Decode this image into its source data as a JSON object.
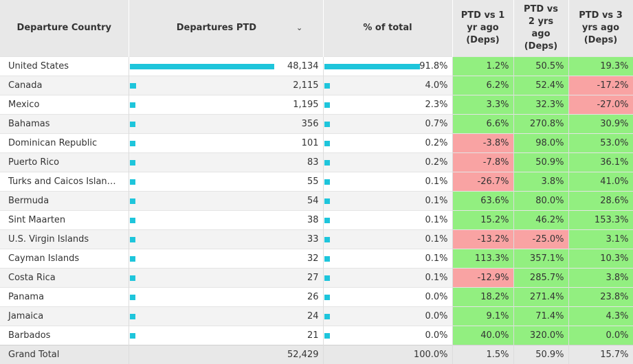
{
  "headers": {
    "country": "Departure Country",
    "departures": "Departures PTD",
    "pct": "% of total",
    "d1": [
      "PTD vs 1",
      "yr ago",
      "(Deps)"
    ],
    "d2": [
      "PTD vs",
      "2 yrs",
      "ago",
      "(Deps)"
    ],
    "d3": [
      "PTD vs 3",
      "yrs ago",
      "(Deps)"
    ]
  },
  "rows": [
    {
      "country": "United States",
      "departures": "48,134",
      "dep_value": 48134,
      "pct": "91.8%",
      "pct_value": 91.8,
      "d1": "1.2%",
      "d2": "50.5%",
      "d3": "19.3%"
    },
    {
      "country": "Canada",
      "departures": "2,115",
      "dep_value": 2115,
      "pct": "4.0%",
      "pct_value": 4.0,
      "d1": "6.2%",
      "d2": "52.4%",
      "d3": "-17.2%"
    },
    {
      "country": "Mexico",
      "departures": "1,195",
      "dep_value": 1195,
      "pct": "2.3%",
      "pct_value": 2.3,
      "d1": "3.3%",
      "d2": "32.3%",
      "d3": "-27.0%"
    },
    {
      "country": "Bahamas",
      "departures": "356",
      "dep_value": 356,
      "pct": "0.7%",
      "pct_value": 0.7,
      "d1": "6.6%",
      "d2": "270.8%",
      "d3": "30.9%"
    },
    {
      "country": "Dominican Republic",
      "departures": "101",
      "dep_value": 101,
      "pct": "0.2%",
      "pct_value": 0.2,
      "d1": "-3.8%",
      "d2": "98.0%",
      "d3": "53.0%"
    },
    {
      "country": "Puerto Rico",
      "departures": "83",
      "dep_value": 83,
      "pct": "0.2%",
      "pct_value": 0.2,
      "d1": "-7.8%",
      "d2": "50.9%",
      "d3": "36.1%"
    },
    {
      "country": "Turks and Caicos Islan…",
      "departures": "55",
      "dep_value": 55,
      "pct": "0.1%",
      "pct_value": 0.1,
      "d1": "-26.7%",
      "d2": "3.8%",
      "d3": "41.0%"
    },
    {
      "country": "Bermuda",
      "departures": "54",
      "dep_value": 54,
      "pct": "0.1%",
      "pct_value": 0.1,
      "d1": "63.6%",
      "d2": "80.0%",
      "d3": "28.6%"
    },
    {
      "country": "Sint Maarten",
      "departures": "38",
      "dep_value": 38,
      "pct": "0.1%",
      "pct_value": 0.1,
      "d1": "15.2%",
      "d2": "46.2%",
      "d3": "153.3%"
    },
    {
      "country": "U.S. Virgin Islands",
      "departures": "33",
      "dep_value": 33,
      "pct": "0.1%",
      "pct_value": 0.1,
      "d1": "-13.2%",
      "d2": "-25.0%",
      "d3": "3.1%"
    },
    {
      "country": "Cayman Islands",
      "departures": "32",
      "dep_value": 32,
      "pct": "0.1%",
      "pct_value": 0.1,
      "d1": "113.3%",
      "d2": "357.1%",
      "d3": "10.3%"
    },
    {
      "country": "Costa Rica",
      "departures": "27",
      "dep_value": 27,
      "pct": "0.1%",
      "pct_value": 0.1,
      "d1": "-12.9%",
      "d2": "285.7%",
      "d3": "3.8%"
    },
    {
      "country": "Panama",
      "departures": "26",
      "dep_value": 26,
      "pct": "0.0%",
      "pct_value": 0.0,
      "d1": "18.2%",
      "d2": "271.4%",
      "d3": "23.8%"
    },
    {
      "country": "Jamaica",
      "departures": "24",
      "dep_value": 24,
      "pct": "0.0%",
      "pct_value": 0.0,
      "d1": "9.1%",
      "d2": "71.4%",
      "d3": "4.3%"
    },
    {
      "country": "Barbados",
      "departures": "21",
      "dep_value": 21,
      "pct": "0.0%",
      "pct_value": 0.0,
      "d1": "40.0%",
      "d2": "320.0%",
      "d3": "0.0%"
    }
  ],
  "total": {
    "label": "Grand Total",
    "departures": "52,429",
    "pct": "100.0%",
    "d1": "1.5%",
    "d2": "50.9%",
    "d3": "15.7%"
  },
  "colors": {
    "bar": "#1ec5db",
    "positive": "#92ef80",
    "negative": "#f9a3a3",
    "header": "#e8e8e8"
  },
  "icons": {
    "sort": "chevron-down-icon"
  }
}
